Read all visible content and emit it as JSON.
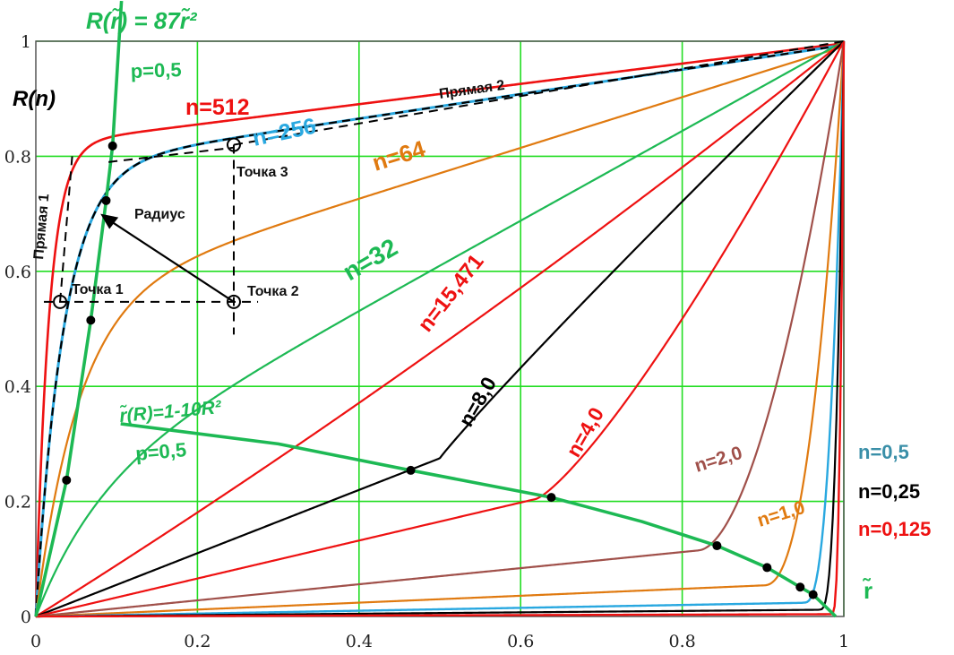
{
  "chart_data": {
    "type": "line",
    "ylabel": "R(n)",
    "xlabel": "r̃",
    "xlim": [
      0,
      1
    ],
    "ylim": [
      0,
      1
    ],
    "x_ticks": [
      "0",
      "0.2",
      "0.4",
      "0.6",
      "0.8",
      "1"
    ],
    "y_ticks": [
      "0",
      "0.2",
      "0.4",
      "0.6",
      "0.8",
      "1"
    ],
    "grid": true,
    "colors": {
      "green": "#1db954",
      "red": "#ee1111",
      "orange": "#e07a10",
      "blue": "#29a8e0",
      "black": "#000000",
      "brown": "#a0504a",
      "teal": "#3a8fa8",
      "grid": "#22dd22"
    },
    "series": [
      {
        "name": "n=512",
        "n": 512,
        "color": "#ee1111"
      },
      {
        "name": "n=256",
        "n": 256,
        "color": "#29a8e0"
      },
      {
        "name": "n=64",
        "n": 64,
        "color": "#e07a10"
      },
      {
        "name": "n=32",
        "n": 32,
        "color": "#1db954"
      },
      {
        "name": "n=15,471",
        "n": 15.471,
        "color": "#ee1111"
      },
      {
        "name": "n=8,0",
        "n": 8,
        "color": "#000000"
      },
      {
        "name": "n=4,0",
        "n": 4,
        "color": "#ee1111"
      },
      {
        "name": "n=2,0",
        "n": 2,
        "color": "#a0504a"
      },
      {
        "name": "n=1,0",
        "n": 1,
        "color": "#e07a10"
      },
      {
        "name": "n=0,5",
        "n": 0.5,
        "color": "#29a8e0"
      },
      {
        "name": "n=0,25",
        "n": 0.25,
        "color": "#000000"
      },
      {
        "name": "n=0,125",
        "n": 0.125,
        "color": "#ee1111"
      }
    ],
    "extra_labels": {
      "right_blue": "n=0,5",
      "right_black": "n=0,25",
      "right_red": "n=0,125"
    },
    "curve_steep": {
      "formula": "R(r̃) = 87r̃²",
      "label": "p=0,5",
      "a": 87
    },
    "curve_falling": {
      "formula": "r̃(R)=1-10R²",
      "label": "p=0,5"
    },
    "intersections": [
      {
        "x": 0.038,
        "y": 0.237
      },
      {
        "x": 0.068,
        "y": 0.515
      },
      {
        "x": 0.087,
        "y": 0.723
      },
      {
        "x": 0.095,
        "y": 0.818
      },
      {
        "x": 0.464,
        "y": 0.254
      },
      {
        "x": 0.638,
        "y": 0.207
      },
      {
        "x": 0.843,
        "y": 0.123
      },
      {
        "x": 0.905,
        "y": 0.085
      },
      {
        "x": 0.946,
        "y": 0.051
      },
      {
        "x": 0.962,
        "y": 0.038
      }
    ],
    "annotations": {
      "pryamaya1": "Прямая 1",
      "pryamaya2": "Прямая 2",
      "radius": "Радиус",
      "point1": "Точка 1",
      "point2": "Точка 2",
      "point3": "Точка 3"
    },
    "construction_points": {
      "point1": {
        "x": 0.03,
        "y": 0.547
      },
      "point2": {
        "x": 0.245,
        "y": 0.547
      },
      "point3": {
        "x": 0.245,
        "y": 0.82
      },
      "arrow_tip": {
        "x": 0.08,
        "y": 0.7
      }
    }
  }
}
